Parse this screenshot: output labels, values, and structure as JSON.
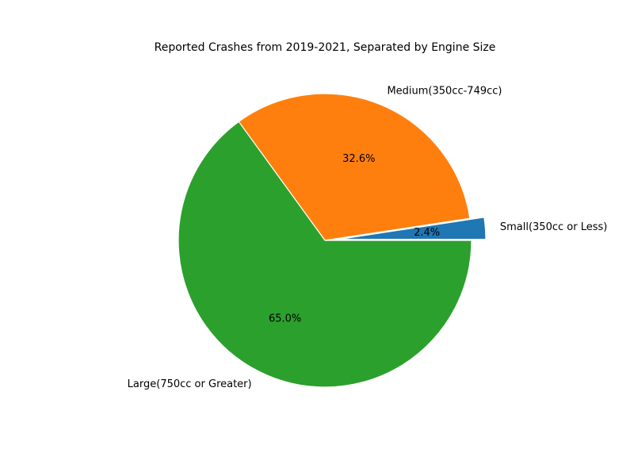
{
  "chart_data": {
    "type": "pie",
    "title": "Reported Crashes from 2019-2021, Separated by Engine Size",
    "start_angle_deg": 0,
    "direction": "counterclockwise",
    "slices": [
      {
        "label": "Small(350cc or Less)",
        "value": 2.4,
        "pct_label": "2.4%",
        "color": "#1f77b4",
        "exploded": true
      },
      {
        "label": "Medium(350cc-749cc)",
        "value": 32.6,
        "pct_label": "32.6%",
        "color": "#ff7f0e",
        "exploded": false
      },
      {
        "label": "Large(750cc or Greater)",
        "value": 65.0,
        "pct_label": "65.0%",
        "color": "#2ca02c",
        "exploded": false
      }
    ]
  }
}
